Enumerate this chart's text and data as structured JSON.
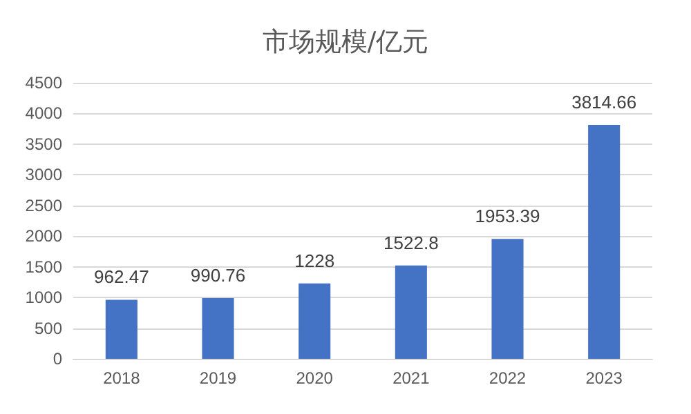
{
  "chart_data": {
    "type": "bar",
    "title": "市场规模/亿元",
    "categories": [
      "2018",
      "2019",
      "2020",
      "2021",
      "2022",
      "2023"
    ],
    "values": [
      962.47,
      990.76,
      1228,
      1522.8,
      1953.39,
      3814.66
    ],
    "color": "#4472c4",
    "ylim": [
      0,
      4500
    ],
    "yticks": [
      0,
      500,
      1000,
      1500,
      2000,
      2500,
      3000,
      3500,
      4000,
      4500
    ],
    "grid": "y",
    "data_labels": true
  }
}
